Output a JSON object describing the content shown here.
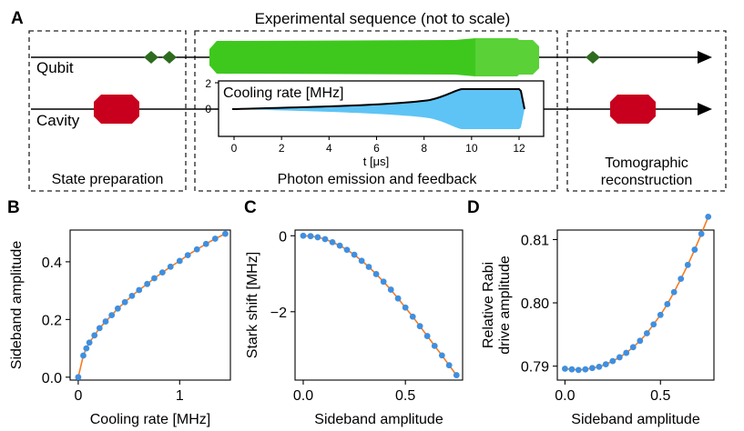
{
  "figure": {
    "colors": {
      "qubit_pulse": "#3ec81e",
      "qubit_pulse_light": "#6fd94c",
      "small_marker": "#2e6b1f",
      "cavity_pulse": "#c8001e",
      "cooling_fill": "#5ec4f5",
      "fit_line": "#f57b20",
      "marker": "#3f8fe0"
    },
    "panelA": {
      "letter": "A",
      "title": "Experimental sequence (not to scale)",
      "qubit_label": "Qubit",
      "cavity_label": "Cavity",
      "box_labels": [
        "State preparation",
        "Photon emission and feedback",
        "Tomographic",
        "reconstruction"
      ],
      "inset": {
        "label": "Cooling rate [MHz]",
        "xlabel": "t [μs]",
        "xticks": [
          "0",
          "2",
          "4",
          "6",
          "8",
          "10",
          "12"
        ],
        "yticks": [
          "2",
          "0"
        ]
      }
    }
  },
  "chart_data": [
    {
      "panel": "B",
      "type": "scatter",
      "xlabel": "Cooling rate [MHz]",
      "ylabel": "Sideband amplitude",
      "xlim": [
        -0.08,
        1.5
      ],
      "ylim": [
        -0.01,
        0.51
      ],
      "xticks": [
        "0",
        "1"
      ],
      "xtick_values": [
        0,
        1
      ],
      "yticks": [
        "0.0",
        "0.2",
        "0.4"
      ],
      "ytick_values": [
        0,
        0.2,
        0.4
      ],
      "x": [
        0,
        0.05,
        0.08,
        0.11,
        0.16,
        0.21,
        0.27,
        0.33,
        0.39,
        0.46,
        0.53,
        0.6,
        0.68,
        0.75,
        0.83,
        0.91,
        1.0,
        1.08,
        1.17,
        1.26,
        1.35,
        1.45
      ],
      "y": [
        0.0,
        0.075,
        0.1,
        0.12,
        0.145,
        0.17,
        0.193,
        0.215,
        0.238,
        0.26,
        0.282,
        0.302,
        0.323,
        0.343,
        0.363,
        0.383,
        0.403,
        0.423,
        0.443,
        0.462,
        0.48,
        0.497
      ]
    },
    {
      "panel": "C",
      "type": "scatter",
      "xlabel": "Sideband amplitude",
      "ylabel": "Stark shift [MHz]",
      "xlim": [
        -0.04,
        0.78
      ],
      "ylim": [
        -3.8,
        0.15
      ],
      "xticks": [
        "0.0",
        "0.5"
      ],
      "xtick_values": [
        0,
        0.5
      ],
      "yticks": [
        "0",
        "−2"
      ],
      "ytick_values": [
        0,
        -2
      ],
      "x": [
        0.0,
        0.036,
        0.071,
        0.107,
        0.143,
        0.179,
        0.214,
        0.25,
        0.286,
        0.321,
        0.357,
        0.393,
        0.429,
        0.464,
        0.5,
        0.536,
        0.571,
        0.607,
        0.643,
        0.679,
        0.714,
        0.75
      ],
      "y": [
        0.0,
        -0.01,
        -0.04,
        -0.09,
        -0.17,
        -0.26,
        -0.37,
        -0.5,
        -0.66,
        -0.82,
        -1.01,
        -1.21,
        -1.42,
        -1.65,
        -1.89,
        -2.13,
        -2.38,
        -2.64,
        -2.9,
        -3.15,
        -3.41,
        -3.67
      ]
    },
    {
      "panel": "D",
      "type": "scatter",
      "xlabel": "Sideband amplitude",
      "ylabel_lines": [
        "Relative Rabi",
        "drive amplitude"
      ],
      "xlim": [
        -0.04,
        0.78
      ],
      "ylim": [
        0.7878,
        0.8115
      ],
      "xticks": [
        "0.0",
        "0.5"
      ],
      "xtick_values": [
        0,
        0.5
      ],
      "yticks": [
        "0.81",
        "0.80",
        "0.79"
      ],
      "ytick_values": [
        0.81,
        0.8,
        0.79
      ],
      "x": [
        0.0,
        0.036,
        0.071,
        0.107,
        0.143,
        0.179,
        0.214,
        0.25,
        0.286,
        0.321,
        0.357,
        0.393,
        0.429,
        0.464,
        0.5,
        0.536,
        0.571,
        0.607,
        0.643,
        0.679,
        0.714,
        0.75
      ],
      "y": [
        0.7896,
        0.7895,
        0.7894,
        0.7895,
        0.7897,
        0.7899,
        0.7903,
        0.7908,
        0.7914,
        0.7921,
        0.793,
        0.794,
        0.7952,
        0.7966,
        0.7981,
        0.7998,
        0.8017,
        0.8038,
        0.806,
        0.8084,
        0.8109,
        0.8136
      ]
    }
  ]
}
